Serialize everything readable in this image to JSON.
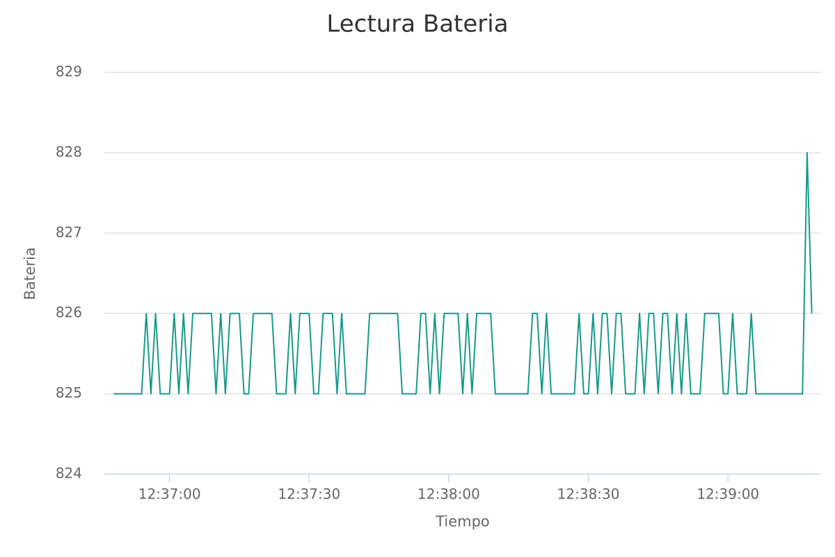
{
  "chart_data": {
    "type": "line",
    "title": "Lectura Bateria",
    "x_label": "Tiempo",
    "y_label": "Bateria",
    "x": [
      "12:36:48",
      "12:36:49",
      "12:36:50",
      "12:36:51",
      "12:36:52",
      "12:36:53",
      "12:36:54",
      "12:36:55",
      "12:36:56",
      "12:36:57",
      "12:36:58",
      "12:36:59",
      "12:37:00",
      "12:37:01",
      "12:37:02",
      "12:37:03",
      "12:37:04",
      "12:37:05",
      "12:37:06",
      "12:37:07",
      "12:37:08",
      "12:37:09",
      "12:37:10",
      "12:37:11",
      "12:37:12",
      "12:37:13",
      "12:37:14",
      "12:37:15",
      "12:37:16",
      "12:37:17",
      "12:37:18",
      "12:37:19",
      "12:37:20",
      "12:37:21",
      "12:37:22",
      "12:37:23",
      "12:37:24",
      "12:37:25",
      "12:37:26",
      "12:37:27",
      "12:37:28",
      "12:37:29",
      "12:37:30",
      "12:37:31",
      "12:37:32",
      "12:37:33",
      "12:37:34",
      "12:37:35",
      "12:37:36",
      "12:37:37",
      "12:37:38",
      "12:37:39",
      "12:37:40",
      "12:37:41",
      "12:37:42",
      "12:37:43",
      "12:37:44",
      "12:37:45",
      "12:37:46",
      "12:37:47",
      "12:37:48",
      "12:37:49",
      "12:37:50",
      "12:37:51",
      "12:37:52",
      "12:37:53",
      "12:37:54",
      "12:37:55",
      "12:37:56",
      "12:37:57",
      "12:37:58",
      "12:37:59",
      "12:38:00",
      "12:38:01",
      "12:38:02",
      "12:38:03",
      "12:38:04",
      "12:38:05",
      "12:38:06",
      "12:38:07",
      "12:38:08",
      "12:38:09",
      "12:38:10",
      "12:38:11",
      "12:38:12",
      "12:38:13",
      "12:38:14",
      "12:38:15",
      "12:38:16",
      "12:38:17",
      "12:38:18",
      "12:38:19",
      "12:38:20",
      "12:38:21",
      "12:38:22",
      "12:38:23",
      "12:38:24",
      "12:38:25",
      "12:38:26",
      "12:38:27",
      "12:38:28",
      "12:38:29",
      "12:38:30",
      "12:38:31",
      "12:38:32",
      "12:38:33",
      "12:38:34",
      "12:38:35",
      "12:38:36",
      "12:38:37",
      "12:38:38",
      "12:38:39",
      "12:38:40",
      "12:38:41",
      "12:38:42",
      "12:38:43",
      "12:38:44",
      "12:38:45",
      "12:38:46",
      "12:38:47",
      "12:38:48",
      "12:38:49",
      "12:38:50",
      "12:38:51",
      "12:38:52",
      "12:38:53",
      "12:38:54",
      "12:38:55",
      "12:38:56",
      "12:38:57",
      "12:38:58",
      "12:38:59",
      "12:39:00",
      "12:39:01",
      "12:39:02",
      "12:39:03",
      "12:39:04",
      "12:39:05",
      "12:39:06",
      "12:39:07",
      "12:39:08",
      "12:39:09",
      "12:39:10",
      "12:39:11",
      "12:39:12",
      "12:39:13",
      "12:39:14",
      "12:39:15",
      "12:39:16",
      "12:39:17",
      "12:39:18"
    ],
    "series": [
      {
        "color": "#17998a",
        "values": [
          825,
          825,
          825,
          825,
          825,
          825,
          825,
          826,
          825,
          826,
          825,
          825,
          825,
          826,
          825,
          826,
          825,
          826,
          826,
          826,
          826,
          826,
          825,
          826,
          825,
          826,
          826,
          826,
          825,
          825,
          826,
          826,
          826,
          826,
          826,
          825,
          825,
          825,
          826,
          825,
          826,
          826,
          826,
          825,
          825,
          826,
          826,
          826,
          825,
          826,
          825,
          825,
          825,
          825,
          825,
          826,
          826,
          826,
          826,
          826,
          826,
          826,
          825,
          825,
          825,
          825,
          826,
          826,
          825,
          826,
          825,
          826,
          826,
          826,
          826,
          825,
          826,
          825,
          826,
          826,
          826,
          826,
          825,
          825,
          825,
          825,
          825,
          825,
          825,
          825,
          826,
          826,
          825,
          826,
          825,
          825,
          825,
          825,
          825,
          825,
          826,
          825,
          825,
          826,
          825,
          826,
          826,
          825,
          826,
          826,
          825,
          825,
          825,
          826,
          825,
          826,
          826,
          825,
          826,
          826,
          825,
          826,
          825,
          826,
          825,
          825,
          825,
          826,
          826,
          826,
          826,
          825,
          825,
          826,
          825,
          825,
          825,
          826,
          825,
          825,
          825,
          825,
          825,
          825,
          825,
          825,
          825,
          825,
          825,
          828,
          826
        ]
      }
    ],
    "xlim": [
      "12:36:46",
      "12:39:20"
    ],
    "xticks": [
      "12:37:00",
      "12:37:30",
      "12:38:00",
      "12:38:30",
      "12:39:00"
    ],
    "ylim": [
      824,
      829
    ],
    "yticks": [
      824,
      825,
      826,
      827,
      828,
      829
    ],
    "grid": true
  }
}
